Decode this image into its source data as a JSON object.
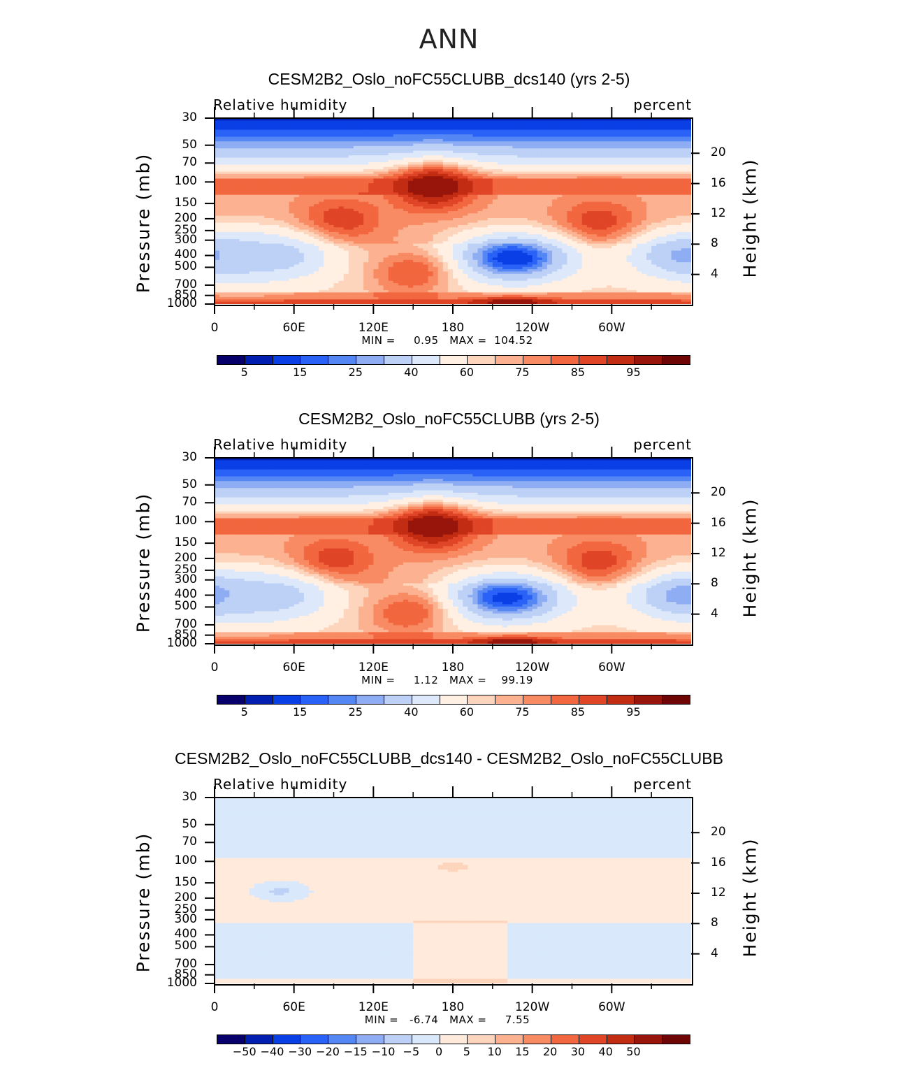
{
  "page_title": "ANN",
  "colors": {
    "rh_palette": [
      "#08006a",
      "#001fb0",
      "#0a3fe6",
      "#2a62f7",
      "#5587f4",
      "#8fadf3",
      "#bdd0f5",
      "#dde9fb",
      "#fff0e3",
      "#fdd5bc",
      "#fcb290",
      "#f88b63",
      "#f2673f",
      "#e04527",
      "#c22c13",
      "#97150a",
      "#6e0606"
    ],
    "diff_palette": [
      "#08006a",
      "#001fb0",
      "#0a3fe6",
      "#2a62f7",
      "#5587f4",
      "#8fadf3",
      "#bdd0f5",
      "#d9e8fb",
      "#ffeadb",
      "#fdd5bc",
      "#fcb290",
      "#f88b63",
      "#f2673f",
      "#e04527",
      "#c22c13",
      "#97150a",
      "#6e0606"
    ]
  },
  "panels": [
    {
      "title": "CESM2B2_Oslo_noFC55CLUBB_dcs140 (yrs 2-5)",
      "left_label": "Relative  humidity",
      "right_label": "percent",
      "min_max": "MIN =     0.95   MAX =  104.52",
      "ylabel": "Pressure  (mb)",
      "right_ylabel": "Height  (km)",
      "colorbar_labels": [
        "5",
        "15",
        "25",
        "40",
        "60",
        "75",
        "85",
        "95"
      ]
    },
    {
      "title": "CESM2B2_Oslo_noFC55CLUBB (yrs 2-5)",
      "left_label": "Relative  humidity",
      "right_label": "percent",
      "min_max": "MIN =     1.12   MAX =    99.19",
      "ylabel": "Pressure  (mb)",
      "right_ylabel": "Height  (km)",
      "colorbar_labels": [
        "5",
        "15",
        "25",
        "40",
        "60",
        "75",
        "85",
        "95"
      ]
    },
    {
      "title": "CESM2B2_Oslo_noFC55CLUBB_dcs140 - CESM2B2_Oslo_noFC55CLUBB",
      "left_label": "Relative  humidity",
      "right_label": "percent",
      "min_max": "MIN =   -6.74   MAX =     7.55",
      "ylabel": "Pressure  (mb)",
      "right_ylabel": "Height  (km)",
      "colorbar_labels": [
        "-50",
        "-40",
        "-30",
        "-20",
        "-15",
        "-10",
        "-5",
        "0",
        "5",
        "10",
        "15",
        "20",
        "30",
        "40",
        "50"
      ]
    }
  ],
  "chart_data": [
    {
      "type": "heatmap",
      "title": "CESM2B2_Oslo_noFC55CLUBB_dcs140 (yrs 2-5)",
      "variable": "Relative humidity",
      "units": "percent",
      "xlabel": "",
      "ylabel": "Pressure (mb)",
      "right_ylabel": "Height (km)",
      "x_ticks": [
        "0",
        "60E",
        "120E",
        "180",
        "120W",
        "60W"
      ],
      "x_tick_values": [
        0,
        60,
        120,
        180,
        240,
        300
      ],
      "xlim": [
        0,
        360
      ],
      "y_ticks": [
        "30",
        "50",
        "70",
        "100",
        "150",
        "200",
        "250",
        "300",
        "400",
        "500",
        "700",
        "850",
        "1000"
      ],
      "y_tick_values": [
        30,
        50,
        70,
        100,
        150,
        200,
        250,
        300,
        400,
        500,
        700,
        850,
        1000
      ],
      "ylim": [
        1000,
        30
      ],
      "right_y_ticks": [
        "20",
        "16",
        "12",
        "8",
        "4"
      ],
      "min": 0.95,
      "max": 104.52,
      "levels": [
        5,
        10,
        15,
        20,
        25,
        30,
        40,
        50,
        60,
        65,
        70,
        75,
        80,
        85,
        90,
        95
      ],
      "colorbar_labels": [
        "5",
        "15",
        "25",
        "40",
        "60",
        "75",
        "85",
        "95"
      ],
      "features": [
        {
          "lon": 165,
          "p": 110,
          "value": 95
        },
        {
          "lon": 95,
          "p": 210,
          "value": 85
        },
        {
          "lon": 290,
          "p": 220,
          "value": 85
        },
        {
          "lon": 225,
          "p": 420,
          "value": 10
        },
        {
          "lon": 360,
          "p": 400,
          "value": 25
        },
        {
          "lon": 45,
          "p": 410,
          "value": 35
        },
        {
          "lon": 148,
          "p": 560,
          "value": 80
        },
        {
          "lon": 225,
          "p": 980,
          "value": 95
        }
      ]
    },
    {
      "type": "heatmap",
      "title": "CESM2B2_Oslo_noFC55CLUBB (yrs 2-5)",
      "variable": "Relative humidity",
      "units": "percent",
      "xlabel": "",
      "ylabel": "Pressure (mb)",
      "right_ylabel": "Height (km)",
      "x_ticks": [
        "0",
        "60E",
        "120E",
        "180",
        "120W",
        "60W"
      ],
      "x_tick_values": [
        0,
        60,
        120,
        180,
        240,
        300
      ],
      "xlim": [
        0,
        360
      ],
      "y_ticks": [
        "30",
        "50",
        "70",
        "100",
        "150",
        "200",
        "250",
        "300",
        "400",
        "500",
        "700",
        "850",
        "1000"
      ],
      "y_tick_values": [
        30,
        50,
        70,
        100,
        150,
        200,
        250,
        300,
        400,
        500,
        700,
        850,
        1000
      ],
      "ylim": [
        1000,
        30
      ],
      "right_y_ticks": [
        "20",
        "16",
        "12",
        "8",
        "4"
      ],
      "min": 1.12,
      "max": 99.19,
      "levels": [
        5,
        10,
        15,
        20,
        25,
        30,
        40,
        50,
        60,
        65,
        70,
        75,
        80,
        85,
        90,
        95
      ],
      "colorbar_labels": [
        "5",
        "15",
        "25",
        "40",
        "60",
        "75",
        "85",
        "95"
      ],
      "features": [
        {
          "lon": 165,
          "p": 110,
          "value": 95
        },
        {
          "lon": 90,
          "p": 210,
          "value": 85
        },
        {
          "lon": 290,
          "p": 220,
          "value": 85
        },
        {
          "lon": 220,
          "p": 420,
          "value": 12
        },
        {
          "lon": 360,
          "p": 400,
          "value": 22
        },
        {
          "lon": 45,
          "p": 410,
          "value": 35
        },
        {
          "lon": 145,
          "p": 560,
          "value": 80
        },
        {
          "lon": 225,
          "p": 980,
          "value": 95
        }
      ]
    },
    {
      "type": "heatmap",
      "title": "CESM2B2_Oslo_noFC55CLUBB_dcs140 - CESM2B2_Oslo_noFC55CLUBB",
      "variable": "Relative humidity",
      "units": "percent",
      "xlabel": "",
      "ylabel": "Pressure (mb)",
      "right_ylabel": "Height (km)",
      "x_ticks": [
        "0",
        "60E",
        "120E",
        "180",
        "120W",
        "60W"
      ],
      "x_tick_values": [
        0,
        60,
        120,
        180,
        240,
        300
      ],
      "xlim": [
        0,
        360
      ],
      "y_ticks": [
        "30",
        "50",
        "70",
        "100",
        "150",
        "200",
        "250",
        "300",
        "400",
        "500",
        "700",
        "850",
        "1000"
      ],
      "y_tick_values": [
        30,
        50,
        70,
        100,
        150,
        200,
        250,
        300,
        400,
        500,
        700,
        850,
        1000
      ],
      "ylim": [
        1000,
        30
      ],
      "right_y_ticks": [
        "20",
        "16",
        "12",
        "8",
        "4"
      ],
      "min": -6.74,
      "max": 7.55,
      "levels": [
        -50,
        -40,
        -30,
        -20,
        -15,
        -10,
        -5,
        0,
        5,
        10,
        15,
        20,
        30,
        40,
        50
      ],
      "colorbar_labels": [
        "-50",
        "-40",
        "-30",
        "-20",
        "-15",
        "-10",
        "-5",
        "0",
        "5",
        "10",
        "15",
        "20",
        "30",
        "40",
        "50"
      ],
      "features": [
        {
          "lon": 0,
          "p": 600,
          "value": -3
        },
        {
          "lon": 180,
          "p": 700,
          "value": 3
        },
        {
          "lon": 180,
          "p": 110,
          "value": 6
        },
        {
          "lon": 50,
          "p": 175,
          "value": -6
        },
        {
          "lon": 140,
          "p": 230,
          "value": 5
        },
        {
          "lon": 280,
          "p": 240,
          "value": 5
        },
        {
          "lon": 330,
          "p": 250,
          "value": 5
        }
      ]
    }
  ]
}
